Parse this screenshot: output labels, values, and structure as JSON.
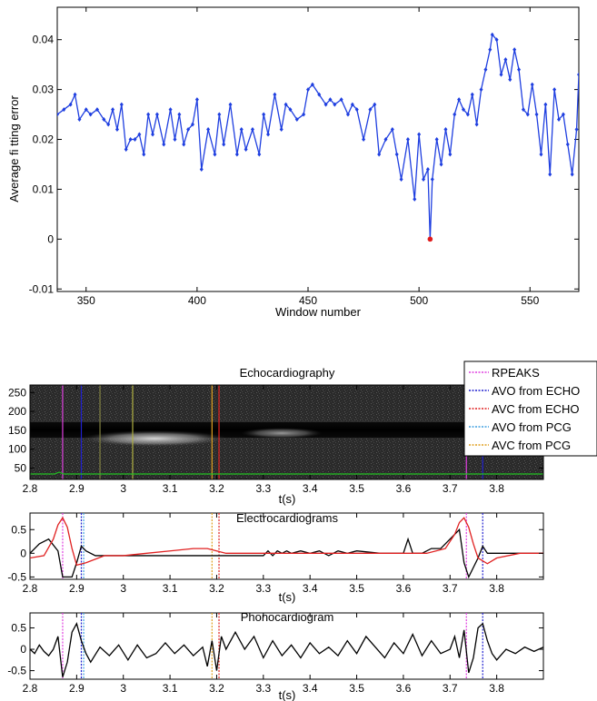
{
  "chart_data": [
    {
      "type": "line",
      "xlabel": "Window number",
      "ylabel": "Average fi tting error",
      "xlim": [
        337,
        572
      ],
      "ylim": [
        -0.0105,
        0.0465
      ],
      "xticks": [
        350,
        400,
        450,
        500,
        550
      ],
      "xtick_labels": [
        "350",
        "400",
        "450",
        "500",
        "550"
      ],
      "yticks": [
        -0.01,
        0,
        0.01,
        0.02,
        0.03,
        0.04
      ],
      "ytick_labels": [
        "-0.01",
        "0",
        "0.01",
        "0.02",
        "0.03",
        "0.04"
      ],
      "grid": false,
      "series": [
        {
          "color": "#1f3fe0",
          "marker": "diamond",
          "x": [
            337,
            340,
            343,
            345,
            347,
            350,
            352,
            355,
            358,
            360,
            362,
            364,
            366,
            368,
            370,
            372,
            374,
            376,
            378,
            380,
            382,
            385,
            388,
            390,
            392,
            394,
            396,
            398,
            400,
            402,
            405,
            408,
            410,
            412,
            415,
            418,
            420,
            422,
            425,
            428,
            430,
            432,
            435,
            438,
            440,
            442,
            445,
            448,
            450,
            452,
            455,
            458,
            460,
            462,
            465,
            468,
            470,
            472,
            475,
            478,
            480,
            482,
            485,
            488,
            490,
            492,
            495,
            498,
            500,
            502,
            504,
            505,
            506,
            508,
            510,
            512,
            514,
            516,
            518,
            520,
            522,
            524,
            526,
            528,
            530,
            532,
            533,
            535,
            537,
            539,
            541,
            543,
            545,
            547,
            549,
            551,
            553,
            555,
            557,
            559,
            561,
            563,
            565,
            567,
            569,
            571,
            572
          ],
          "y": [
            0.025,
            0.026,
            0.027,
            0.029,
            0.024,
            0.026,
            0.025,
            0.026,
            0.024,
            0.023,
            0.026,
            0.022,
            0.027,
            0.018,
            0.02,
            0.02,
            0.021,
            0.017,
            0.025,
            0.021,
            0.025,
            0.019,
            0.026,
            0.02,
            0.025,
            0.019,
            0.022,
            0.023,
            0.028,
            0.014,
            0.022,
            0.017,
            0.025,
            0.019,
            0.027,
            0.017,
            0.022,
            0.018,
            0.022,
            0.017,
            0.025,
            0.021,
            0.029,
            0.022,
            0.027,
            0.026,
            0.024,
            0.025,
            0.03,
            0.031,
            0.029,
            0.027,
            0.028,
            0.027,
            0.028,
            0.025,
            0.027,
            0.026,
            0.02,
            0.026,
            0.027,
            0.017,
            0.02,
            0.022,
            0.017,
            0.012,
            0.02,
            0.008,
            0.021,
            0.012,
            0.014,
            0.0,
            0.012,
            0.02,
            0.015,
            0.022,
            0.017,
            0.025,
            0.028,
            0.026,
            0.025,
            0.029,
            0.023,
            0.03,
            0.034,
            0.038,
            0.041,
            0.04,
            0.033,
            0.036,
            0.032,
            0.038,
            0.034,
            0.026,
            0.025,
            0.031,
            0.025,
            0.017,
            0.027,
            0.013,
            0.03,
            0.024,
            0.025,
            0.019,
            0.013,
            0.022,
            0.033
          ]
        }
      ],
      "highlight_point": {
        "x": 505,
        "y": 0.0,
        "color": "#e01b1b"
      }
    },
    {
      "type": "heatmap",
      "title": "Echocardiography",
      "xlabel": "t(s)",
      "xlim": [
        2.8,
        3.9
      ],
      "ylim": [
        20,
        270
      ],
      "xticks": [
        2.8,
        2.9,
        3,
        3.1,
        3.2,
        3.3,
        3.4,
        3.5,
        3.6,
        3.7,
        3.8
      ],
      "xtick_labels": [
        "2.8",
        "2.9",
        "3",
        "3.1",
        "3.2",
        "3.3",
        "3.4",
        "3.5",
        "3.6",
        "3.7",
        "3.8"
      ],
      "yticks": [
        50,
        100,
        150,
        200,
        250
      ],
      "ytick_labels": [
        "50",
        "100",
        "150",
        "200",
        "250"
      ],
      "green_trace_level": 20,
      "legend": {
        "placement": "top-right",
        "entries": [
          {
            "label": "RPEAKS",
            "color": "#e040e0"
          },
          {
            "label": "AVO from ECHO",
            "color": "#2020d0"
          },
          {
            "label": "AVC from ECHO",
            "color": "#e02020"
          },
          {
            "label": "AVO from PCG",
            "color": "#40a0e0"
          },
          {
            "label": "AVC from PCG",
            "color": "#e0a020"
          }
        ]
      },
      "vlines": [
        {
          "x": 2.87,
          "color": "#e040e0"
        },
        {
          "x": 2.91,
          "color": "#2020d0"
        },
        {
          "x": 2.95,
          "color": "#808040"
        },
        {
          "x": 3.02,
          "color": "#b0b040"
        },
        {
          "x": 3.19,
          "color": "#e0a020"
        },
        {
          "x": 3.205,
          "color": "#e02020"
        },
        {
          "x": 3.735,
          "color": "#e040e0"
        },
        {
          "x": 3.77,
          "color": "#2020d0"
        }
      ]
    },
    {
      "type": "line",
      "title": "Electrocardiograms",
      "xlabel": "t(s)",
      "xlim": [
        2.8,
        3.9
      ],
      "ylim": [
        -0.55,
        0.85
      ],
      "xticks": [
        2.8,
        2.9,
        3,
        3.1,
        3.2,
        3.3,
        3.4,
        3.5,
        3.6,
        3.7,
        3.8
      ],
      "xtick_labels": [
        "2.8",
        "2.9",
        "3",
        "3.1",
        "3.2",
        "3.3",
        "3.4",
        "3.5",
        "3.6",
        "3.7",
        "3.8"
      ],
      "yticks": [
        -0.5,
        0,
        0.5
      ],
      "ytick_labels": [
        "-0.5",
        "0",
        "0.5"
      ],
      "series": [
        {
          "color": "#000000",
          "x": [
            2.8,
            2.82,
            2.84,
            2.86,
            2.87,
            2.89,
            2.9,
            2.91,
            2.92,
            2.94,
            3.0,
            3.1,
            3.2,
            3.3,
            3.31,
            3.32,
            3.33,
            3.34,
            3.35,
            3.36,
            3.38,
            3.4,
            3.42,
            3.44,
            3.46,
            3.48,
            3.5,
            3.55,
            3.6,
            3.61,
            3.62,
            3.63,
            3.64,
            3.66,
            3.68,
            3.7,
            3.72,
            3.73,
            3.74,
            3.76,
            3.77,
            3.78,
            3.8,
            3.9
          ],
          "y": [
            0,
            0.2,
            0.3,
            0.05,
            -0.5,
            -0.5,
            -0.2,
            0.15,
            0.05,
            -0.05,
            -0.05,
            -0.05,
            -0.05,
            -0.05,
            0.05,
            -0.05,
            0.05,
            0,
            0.05,
            0,
            0.05,
            0,
            0.05,
            -0.05,
            0.05,
            0,
            0.05,
            0,
            0,
            0.3,
            0,
            0,
            0,
            0.1,
            0.1,
            0.3,
            0.5,
            -0.2,
            -0.5,
            -0.1,
            0.15,
            0,
            0,
            0
          ]
        },
        {
          "color": "#e02020",
          "x": [
            2.8,
            2.83,
            2.85,
            2.86,
            2.87,
            2.88,
            2.89,
            2.9,
            2.92,
            2.96,
            3.0,
            3.05,
            3.1,
            3.15,
            3.18,
            3.22,
            3.3,
            3.5,
            3.65,
            3.69,
            3.71,
            3.72,
            3.73,
            3.74,
            3.75,
            3.76,
            3.78,
            3.8,
            3.85,
            3.9
          ],
          "y": [
            -0.1,
            -0.05,
            0.3,
            0.6,
            0.75,
            0.55,
            0.1,
            -0.25,
            -0.2,
            -0.05,
            -0.05,
            0,
            0.05,
            0.1,
            0.1,
            0,
            0,
            0,
            0,
            0.1,
            0.4,
            0.65,
            0.75,
            0.55,
            0.2,
            -0.1,
            -0.22,
            -0.1,
            0,
            0
          ]
        }
      ],
      "vlines": [
        {
          "x": 2.87,
          "color": "#e040e0"
        },
        {
          "x": 2.91,
          "color": "#2020d0"
        },
        {
          "x": 2.915,
          "color": "#40a0e0"
        },
        {
          "x": 3.19,
          "color": "#e0a020"
        },
        {
          "x": 3.205,
          "color": "#e02020"
        },
        {
          "x": 3.735,
          "color": "#e040e0"
        },
        {
          "x": 3.77,
          "color": "#2020d0"
        }
      ]
    },
    {
      "type": "line",
      "title": "Phonocardiogram",
      "xlabel": "t(s)",
      "xlim": [
        2.8,
        3.9
      ],
      "ylim": [
        -0.7,
        0.85
      ],
      "xticks": [
        2.8,
        2.9,
        3,
        3.1,
        3.2,
        3.3,
        3.4,
        3.5,
        3.6,
        3.7,
        3.8
      ],
      "xtick_labels": [
        "2.8",
        "2.9",
        "3",
        "3.1",
        "3.2",
        "3.3",
        "3.4",
        "3.5",
        "3.6",
        "3.7",
        "3.8"
      ],
      "yticks": [
        -0.5,
        0,
        0.5
      ],
      "ytick_labels": [
        "-0.5",
        "0",
        "0.5"
      ],
      "series": [
        {
          "color": "#000000",
          "x": [
            2.8,
            2.81,
            2.82,
            2.83,
            2.84,
            2.85,
            2.86,
            2.87,
            2.88,
            2.89,
            2.9,
            2.91,
            2.92,
            2.93,
            2.95,
            2.97,
            2.99,
            3.01,
            3.03,
            3.05,
            3.07,
            3.09,
            3.11,
            3.13,
            3.15,
            3.17,
            3.18,
            3.19,
            3.2,
            3.21,
            3.22,
            3.24,
            3.26,
            3.28,
            3.3,
            3.32,
            3.34,
            3.36,
            3.38,
            3.4,
            3.42,
            3.44,
            3.46,
            3.48,
            3.5,
            3.52,
            3.54,
            3.56,
            3.58,
            3.6,
            3.62,
            3.64,
            3.66,
            3.68,
            3.7,
            3.71,
            3.72,
            3.73,
            3.74,
            3.75,
            3.76,
            3.77,
            3.78,
            3.79,
            3.8,
            3.82,
            3.84,
            3.86,
            3.88,
            3.9
          ],
          "y": [
            0,
            -0.1,
            0.1,
            -0.05,
            -0.15,
            0.0,
            0.3,
            -0.65,
            -0.3,
            0.4,
            0.6,
            0.2,
            -0.1,
            -0.3,
            0.05,
            -0.15,
            0.1,
            -0.25,
            0.1,
            -0.2,
            -0.1,
            0.15,
            -0.1,
            0.1,
            -0.15,
            0.05,
            -0.4,
            0.2,
            -0.5,
            0.3,
            0.0,
            0.4,
            0.0,
            0.3,
            -0.2,
            0.2,
            -0.15,
            0.1,
            -0.2,
            0.15,
            -0.1,
            0.05,
            -0.15,
            0.2,
            -0.1,
            0.3,
            0.05,
            -0.2,
            0.15,
            -0.1,
            0.35,
            -0.15,
            0.2,
            -0.1,
            0.0,
            0.3,
            -0.2,
            0.45,
            -0.55,
            -0.2,
            0.5,
            0.6,
            0.2,
            -0.1,
            -0.25,
            0.0,
            -0.1,
            0.05,
            -0.05,
            0.05
          ]
        }
      ],
      "vlines": [
        {
          "x": 2.87,
          "color": "#e040e0"
        },
        {
          "x": 2.91,
          "color": "#2020d0"
        },
        {
          "x": 2.915,
          "color": "#40a0e0"
        },
        {
          "x": 3.19,
          "color": "#e0a020"
        },
        {
          "x": 3.205,
          "color": "#e02020"
        },
        {
          "x": 3.735,
          "color": "#e040e0"
        },
        {
          "x": 3.77,
          "color": "#2020d0"
        }
      ]
    }
  ]
}
